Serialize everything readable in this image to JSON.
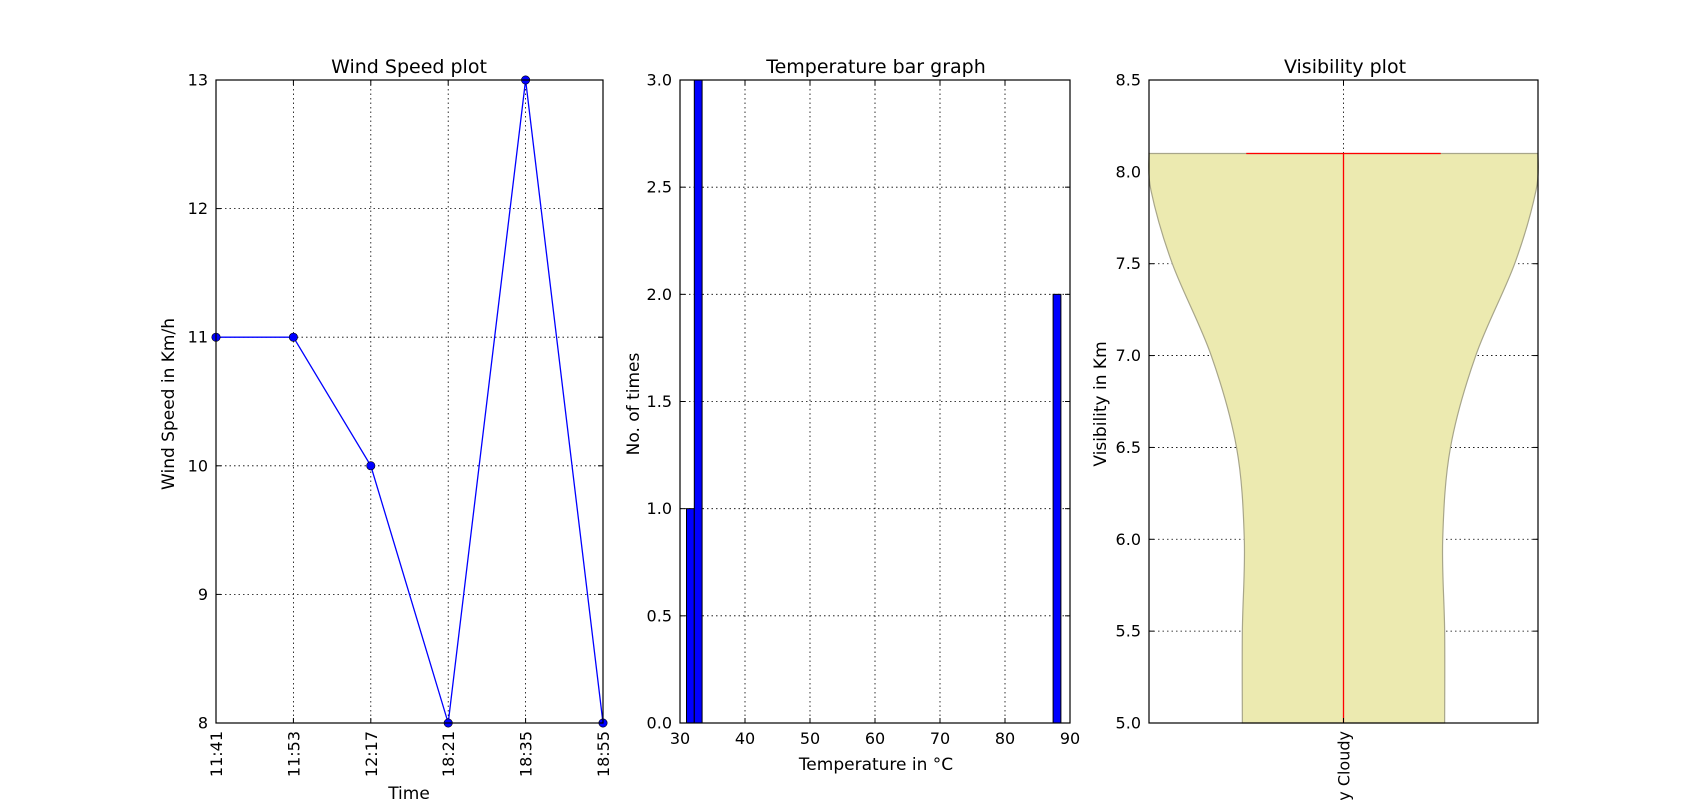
{
  "chart_data": [
    {
      "type": "line",
      "title": "Wind Speed plot",
      "xlabel": "Time",
      "ylabel": "Wind Speed in Km/h",
      "categories": [
        "11:41",
        "11:53",
        "12:17",
        "18:21",
        "18:35",
        "18:55"
      ],
      "series": [
        {
          "values": [
            11,
            11,
            10,
            8,
            13,
            8
          ]
        }
      ],
      "ylim": [
        8,
        13
      ],
      "yticks": [
        "8",
        "9",
        "10",
        "11",
        "12",
        "13"
      ],
      "grid": true,
      "color": "#0000ff"
    },
    {
      "type": "bar",
      "title": "Temperature bar graph",
      "xlabel": "Temperature in °C",
      "ylabel": "No. of times",
      "xlim": [
        30,
        90
      ],
      "ylim": [
        0,
        3
      ],
      "xticks": [
        "30",
        "40",
        "50",
        "60",
        "70",
        "80",
        "90"
      ],
      "yticks": [
        "0.0",
        "0.5",
        "1.0",
        "1.5",
        "2.0",
        "2.5",
        "3.0"
      ],
      "bins": [
        {
          "start": 31.0,
          "end": 32.2,
          "count": 1
        },
        {
          "start": 32.2,
          "end": 33.4,
          "count": 3
        },
        {
          "start": 87.4,
          "end": 88.6,
          "count": 2
        }
      ],
      "grid": true,
      "color": "#0000ff"
    },
    {
      "type": "violin",
      "title": "Visibility plot",
      "xlabel": "",
      "ylabel": "Visibility in Km",
      "categories": [
        "Mostly Cloudy"
      ],
      "visible_category_text": "y Cloudy",
      "ylim": [
        5.0,
        8.5
      ],
      "yticks": [
        "5.0",
        "5.5",
        "6.0",
        "6.5",
        "7.0",
        "7.5",
        "8.0",
        "8.5"
      ],
      "max": 8.1,
      "profile": [
        {
          "y": 5.0,
          "half_width": 0.52
        },
        {
          "y": 5.5,
          "half_width": 0.52
        },
        {
          "y": 6.0,
          "half_width": 0.51
        },
        {
          "y": 6.5,
          "half_width": 0.55
        },
        {
          "y": 7.0,
          "half_width": 0.68
        },
        {
          "y": 7.5,
          "half_width": 0.88
        },
        {
          "y": 7.9,
          "half_width": 0.99
        },
        {
          "y": 8.1,
          "half_width": 1.0
        }
      ],
      "grid": true,
      "fill_color": "#eceab0",
      "edge_color": "#a8a68a",
      "line_color": "#ff0000"
    }
  ]
}
